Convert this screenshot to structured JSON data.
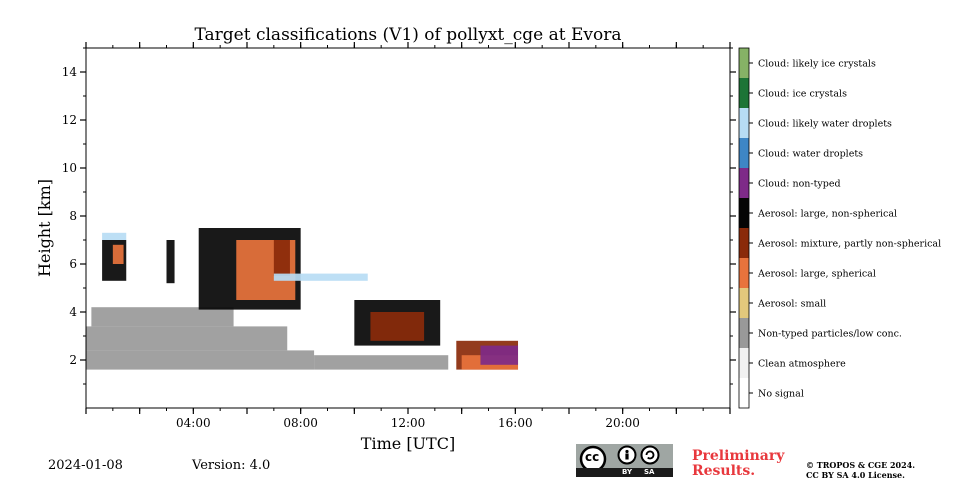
{
  "chart_data": {
    "type": "heatmap",
    "title": "Target classifications (V1) of pollyxt_cge at Evora",
    "xlabel": "Time [UTC]",
    "ylabel": "Height [km]",
    "xlim": [
      0,
      24
    ],
    "ylim": [
      0,
      15
    ],
    "x_ticks": [
      {
        "value": 4,
        "label": "04:00"
      },
      {
        "value": 8,
        "label": "08:00"
      },
      {
        "value": 12,
        "label": "12:00"
      },
      {
        "value": 16,
        "label": "16:00"
      },
      {
        "value": 20,
        "label": "20:00"
      }
    ],
    "y_ticks": [
      {
        "value": 2,
        "label": "2"
      },
      {
        "value": 4,
        "label": "4"
      },
      {
        "value": 6,
        "label": "6"
      },
      {
        "value": 8,
        "label": "8"
      },
      {
        "value": 10,
        "label": "10"
      },
      {
        "value": 12,
        "label": "12"
      },
      {
        "value": 14,
        "label": "14"
      }
    ],
    "classes": [
      {
        "name": "No signal",
        "color": "#ffffff"
      },
      {
        "name": "Clean atmosphere",
        "color": "#f1f1f1"
      },
      {
        "name": "Non-typed particles/low conc.",
        "color": "#999999"
      },
      {
        "name": "Aerosol: small",
        "color": "#e3c87c"
      },
      {
        "name": "Aerosol: large, spherical",
        "color": "#e8733c"
      },
      {
        "name": "Aerosol: mixture, partly non-spherical",
        "color": "#8a2a0a"
      },
      {
        "name": "Aerosol: large, non-spherical",
        "color": "#050505"
      },
      {
        "name": "Cloud: non-typed",
        "color": "#7e2a88"
      },
      {
        "name": "Cloud: water droplets",
        "color": "#3e86c5"
      },
      {
        "name": "Cloud: likely water droplets",
        "color": "#b7dcf4"
      },
      {
        "name": "Cloud: ice crystals",
        "color": "#1d7436"
      },
      {
        "name": "Cloud: likely ice crystals",
        "color": "#86b266"
      }
    ],
    "regions": [
      {
        "class": "Non-typed particles/low conc.",
        "t0": 0.0,
        "t1": 8.5,
        "h0": 1.6,
        "h1": 2.4
      },
      {
        "class": "Non-typed particles/low conc.",
        "t0": 0.0,
        "t1": 7.5,
        "h0": 2.4,
        "h1": 3.4
      },
      {
        "class": "Non-typed particles/low conc.",
        "t0": 0.2,
        "t1": 5.5,
        "h0": 3.4,
        "h1": 4.2
      },
      {
        "class": "Non-typed particles/low conc.",
        "t0": 8.5,
        "t1": 13.5,
        "h0": 1.6,
        "h1": 2.2
      },
      {
        "class": "Aerosol: large, non-spherical",
        "t0": 0.6,
        "t1": 1.5,
        "h0": 5.3,
        "h1": 7.0
      },
      {
        "class": "Aerosol: large, spherical",
        "t0": 1.0,
        "t1": 1.4,
        "h0": 6.0,
        "h1": 6.8
      },
      {
        "class": "Aerosol: large, non-spherical",
        "t0": 3.0,
        "t1": 3.3,
        "h0": 5.2,
        "h1": 7.0
      },
      {
        "class": "Aerosol: large, non-spherical",
        "t0": 4.2,
        "t1": 8.0,
        "h0": 4.1,
        "h1": 7.5
      },
      {
        "class": "Aerosol: large, spherical",
        "t0": 5.6,
        "t1": 7.8,
        "h0": 4.5,
        "h1": 7.0
      },
      {
        "class": "Aerosol: mixture, partly non-spherical",
        "t0": 7.0,
        "t1": 7.6,
        "h0": 5.5,
        "h1": 7.0
      },
      {
        "class": "Cloud: likely water droplets",
        "t0": 7.0,
        "t1": 10.5,
        "h0": 5.3,
        "h1": 5.6
      },
      {
        "class": "Aerosol: large, non-spherical",
        "t0": 10.0,
        "t1": 13.2,
        "h0": 2.6,
        "h1": 4.5
      },
      {
        "class": "Aerosol: mixture, partly non-spherical",
        "t0": 10.6,
        "t1": 12.6,
        "h0": 2.8,
        "h1": 4.0
      },
      {
        "class": "Aerosol: mixture, partly non-spherical",
        "t0": 13.8,
        "t1": 16.1,
        "h0": 1.6,
        "h1": 2.8
      },
      {
        "class": "Aerosol: large, spherical",
        "t0": 14.0,
        "t1": 16.1,
        "h0": 1.6,
        "h1": 2.2
      },
      {
        "class": "Cloud: non-typed",
        "t0": 14.7,
        "t1": 16.1,
        "h0": 1.8,
        "h1": 2.6
      },
      {
        "class": "Cloud: likely water droplets",
        "t0": 0.6,
        "t1": 1.5,
        "h0": 7.0,
        "h1": 7.3
      }
    ]
  },
  "footer": {
    "date": "2024-01-08",
    "version": "Version: 4.0",
    "prelim_line1": "Preliminary",
    "prelim_line2": "Results.",
    "copyright1": "© TROPOS & CGE 2024.",
    "copyright2": "CC BY SA 4.0 License.",
    "cc_text": "cc",
    "cc_by": "BY",
    "cc_sa": "SA"
  }
}
